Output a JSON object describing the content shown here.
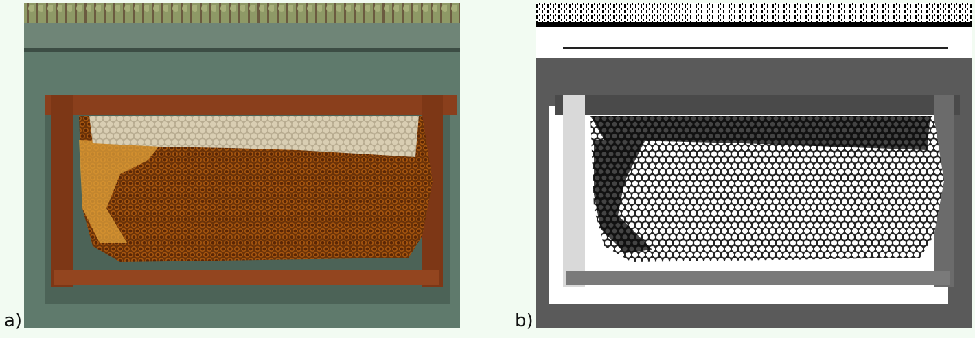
{
  "figure": {
    "panels": [
      {
        "label": "a)",
        "kind": "color photo of honeycomb frame on hive box"
      },
      {
        "label": "b)",
        "kind": "binarized / thresholded version of the same photo"
      }
    ]
  },
  "colors": {
    "background": "#f2fbf2",
    "hive_green": "#5f7a6c",
    "wood": "#8a3f1c",
    "comb_dark": "#6a3208",
    "comb_light": "#e2a33b",
    "capped_cells": "#cfc3a7"
  }
}
